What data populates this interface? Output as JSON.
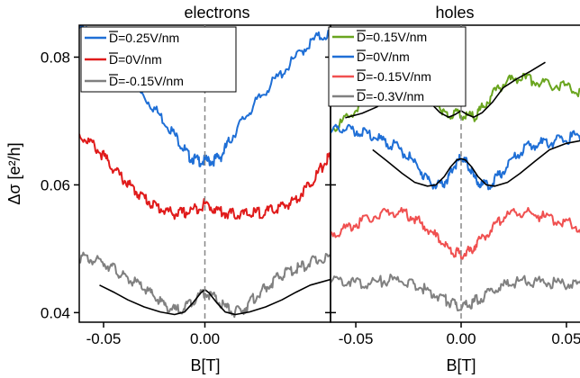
{
  "chart_data": [
    {
      "type": "line",
      "title": "electrons",
      "xlabel": "B[T]",
      "ylabel": "Δσ [e²/h]",
      "xlim": [
        -0.062,
        0.062
      ],
      "ylim": [
        0.0385,
        0.085
      ],
      "xticks": [
        -0.05,
        0.0
      ],
      "xtick_labels": [
        "-0.05",
        "0.00"
      ],
      "yticks": [
        0.04,
        0.06,
        0.08
      ],
      "ytick_labels": [
        "0.04",
        "0.06",
        "0.08"
      ],
      "legend_position": "top-left",
      "series": [
        {
          "name": "D=0.25V/nm",
          "color": "#1f6fd6",
          "x": [
            -0.062,
            -0.055,
            -0.048,
            -0.04,
            -0.032,
            -0.025,
            -0.018,
            -0.012,
            -0.008,
            -0.004,
            0.0,
            0.004,
            0.008,
            0.012,
            0.018,
            0.025,
            0.032,
            0.04,
            0.048,
            0.055,
            0.062
          ],
          "y": [
            0.0845,
            0.0838,
            0.0815,
            0.0778,
            0.0745,
            0.072,
            0.0692,
            0.0665,
            0.0645,
            0.0638,
            0.0637,
            0.0638,
            0.0645,
            0.0668,
            0.0698,
            0.0728,
            0.0755,
            0.0782,
            0.081,
            0.083,
            0.0837
          ]
        },
        {
          "name": "D=0V/nm",
          "color": "#e01b1b",
          "x": [
            -0.062,
            -0.056,
            -0.05,
            -0.045,
            -0.04,
            -0.035,
            -0.03,
            -0.025,
            -0.02,
            -0.015,
            -0.01,
            -0.005,
            0.0,
            0.005,
            0.01,
            0.015,
            0.02,
            0.025,
            0.03,
            0.035,
            0.04,
            0.045,
            0.05,
            0.055,
            0.06,
            0.062
          ],
          "y": [
            0.0678,
            0.0665,
            0.0645,
            0.0625,
            0.0608,
            0.0592,
            0.058,
            0.0568,
            0.056,
            0.0555,
            0.0556,
            0.0562,
            0.057,
            0.0562,
            0.0556,
            0.0554,
            0.0554,
            0.0556,
            0.0557,
            0.0562,
            0.0568,
            0.0578,
            0.0595,
            0.0615,
            0.0638,
            0.0648
          ]
        },
        {
          "name": "D=-0.15V/nm",
          "color": "#808080",
          "x": [
            -0.062,
            -0.056,
            -0.05,
            -0.045,
            -0.04,
            -0.035,
            -0.03,
            -0.025,
            -0.02,
            -0.015,
            -0.01,
            -0.005,
            0.0,
            0.005,
            0.01,
            0.015,
            0.02,
            0.025,
            0.03,
            0.035,
            0.04,
            0.045,
            0.05,
            0.055,
            0.062
          ],
          "y": [
            0.0487,
            0.0483,
            0.0478,
            0.047,
            0.0455,
            0.0448,
            0.0438,
            0.0425,
            0.0412,
            0.0403,
            0.0408,
            0.0422,
            0.0433,
            0.0422,
            0.0408,
            0.04,
            0.0408,
            0.0425,
            0.0438,
            0.0452,
            0.0463,
            0.0468,
            0.0475,
            0.0482,
            0.0488
          ]
        },
        {
          "name": "",
          "color": "#000000",
          "x": [
            -0.052,
            -0.045,
            -0.038,
            -0.03,
            -0.022,
            -0.015,
            -0.01,
            -0.006,
            -0.002,
            0.0,
            0.002,
            0.006,
            0.01,
            0.015,
            0.022,
            0.03,
            0.038,
            0.045,
            0.052,
            0.062
          ],
          "y": [
            0.0443,
            0.0432,
            0.042,
            0.0409,
            0.0401,
            0.0397,
            0.0401,
            0.0415,
            0.0431,
            0.0436,
            0.0431,
            0.0415,
            0.0401,
            0.0397,
            0.0401,
            0.0409,
            0.042,
            0.0432,
            0.0443,
            0.0452
          ]
        }
      ]
    },
    {
      "type": "line",
      "title": "holes",
      "xlabel": "B[T]",
      "ylabel": "",
      "xlim": [
        -0.062,
        0.062
      ],
      "ylim": [
        0.0385,
        0.085
      ],
      "xticks": [
        -0.05,
        0.0,
        0.05
      ],
      "xtick_labels": [
        "-0.05",
        "0.00",
        "0.05"
      ],
      "legend_position": "top-left",
      "series": [
        {
          "name": "D=0.15V/nm",
          "color": "#6aa51f",
          "x": [
            -0.062,
            -0.055,
            -0.048,
            -0.04,
            -0.033,
            -0.026,
            -0.02,
            -0.014,
            -0.009,
            -0.005,
            0.0,
            0.005,
            0.009,
            0.014,
            0.02,
            0.026,
            0.033,
            0.04,
            0.048,
            0.055,
            0.062
          ],
          "y": [
            0.0685,
            0.0702,
            0.0725,
            0.0748,
            0.0762,
            0.077,
            0.076,
            0.074,
            0.0718,
            0.0708,
            0.0712,
            0.0705,
            0.0715,
            0.0738,
            0.0758,
            0.0768,
            0.0765,
            0.0758,
            0.0755,
            0.0748,
            0.0735
          ]
        },
        {
          "name": "D=0V/nm",
          "color": "#1f6fd6",
          "x": [
            -0.062,
            -0.056,
            -0.05,
            -0.044,
            -0.038,
            -0.032,
            -0.026,
            -0.02,
            -0.015,
            -0.01,
            -0.006,
            -0.003,
            0.0,
            0.003,
            0.006,
            0.01,
            0.015,
            0.02,
            0.026,
            0.032,
            0.038,
            0.044,
            0.05,
            0.056,
            0.062
          ],
          "y": [
            0.0683,
            0.0688,
            0.0685,
            0.0678,
            0.067,
            0.0662,
            0.0648,
            0.0625,
            0.0604,
            0.0597,
            0.0612,
            0.0632,
            0.0642,
            0.0632,
            0.0612,
            0.0598,
            0.0604,
            0.0622,
            0.0645,
            0.066,
            0.0665,
            0.0668,
            0.0672,
            0.0678,
            0.0682
          ]
        },
        {
          "name": "D=-0.15V/nm",
          "color": "#f05050",
          "x": [
            -0.062,
            -0.055,
            -0.048,
            -0.04,
            -0.033,
            -0.026,
            -0.02,
            -0.014,
            -0.008,
            -0.004,
            0.0,
            0.004,
            0.008,
            0.014,
            0.02,
            0.026,
            0.033,
            0.04,
            0.048,
            0.055,
            0.062
          ],
          "y": [
            0.0522,
            0.0532,
            0.0542,
            0.0552,
            0.0558,
            0.0554,
            0.0542,
            0.0525,
            0.0507,
            0.0495,
            0.049,
            0.0496,
            0.051,
            0.053,
            0.055,
            0.0558,
            0.0555,
            0.0549,
            0.0543,
            0.0535,
            0.0528
          ]
        },
        {
          "name": "D=-0.3V/nm",
          "color": "#808080",
          "x": [
            -0.062,
            -0.055,
            -0.048,
            -0.04,
            -0.033,
            -0.026,
            -0.02,
            -0.014,
            -0.008,
            -0.004,
            0.0,
            0.004,
            0.008,
            0.014,
            0.02,
            0.026,
            0.033,
            0.04,
            0.048,
            0.055,
            0.062
          ],
          "y": [
            0.0453,
            0.045,
            0.0446,
            0.0448,
            0.0452,
            0.0448,
            0.044,
            0.0432,
            0.0422,
            0.0413,
            0.0407,
            0.0412,
            0.0421,
            0.0432,
            0.0442,
            0.0448,
            0.0449,
            0.0447,
            0.0445,
            0.0443,
            0.0441
          ]
        },
        {
          "name": "",
          "color": "#000000",
          "x": [
            -0.055,
            -0.047,
            -0.04,
            -0.033,
            -0.026,
            -0.02,
            -0.015,
            -0.01,
            -0.006,
            -0.003,
            0.0,
            0.003,
            0.006,
            0.01,
            0.015,
            0.02,
            0.026,
            0.033,
            0.04
          ],
          "y": [
            0.0705,
            0.0712,
            0.0722,
            0.0738,
            0.0755,
            0.0752,
            0.073,
            0.0713,
            0.0706,
            0.071,
            0.0716,
            0.071,
            0.0706,
            0.0713,
            0.073,
            0.0752,
            0.0765,
            0.0778,
            0.0792
          ]
        },
        {
          "name": "",
          "color": "#000000",
          "x": [
            -0.042,
            -0.035,
            -0.028,
            -0.022,
            -0.016,
            -0.012,
            -0.008,
            -0.005,
            -0.002,
            0.0,
            0.002,
            0.005,
            0.008,
            0.012,
            0.016,
            0.022,
            0.028,
            0.035,
            0.042,
            0.05,
            0.058
          ],
          "y": [
            0.0655,
            0.0637,
            0.0618,
            0.0604,
            0.0598,
            0.06,
            0.0613,
            0.0628,
            0.0639,
            0.0641,
            0.0639,
            0.0628,
            0.0613,
            0.06,
            0.0598,
            0.0604,
            0.0618,
            0.0637,
            0.0655,
            0.0665,
            0.067
          ]
        }
      ]
    }
  ]
}
